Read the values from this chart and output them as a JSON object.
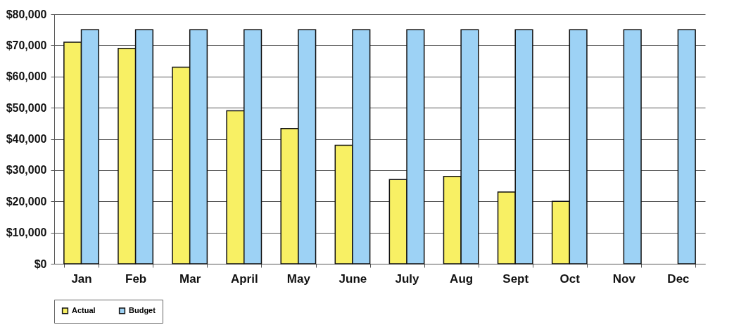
{
  "chart_data": {
    "type": "bar",
    "categories": [
      "Jan",
      "Feb",
      "Mar",
      "April",
      "May",
      "June",
      "July",
      "Aug",
      "Sept",
      "Oct",
      "Nov",
      "Dec"
    ],
    "series": [
      {
        "name": "Actual",
        "color": "#f8f064",
        "values": [
          71000,
          69000,
          63000,
          49000,
          43300,
          38000,
          27000,
          28000,
          23000,
          20000,
          null,
          null
        ]
      },
      {
        "name": "Budget",
        "color": "#9dd2f5",
        "values": [
          75000,
          75000,
          75000,
          75000,
          75000,
          75000,
          75000,
          75000,
          75000,
          75000,
          75000,
          75000
        ]
      }
    ],
    "ylim": [
      0,
      80000
    ],
    "yticks": [
      {
        "value": 0,
        "label": "$0"
      },
      {
        "value": 10000,
        "label": "$10,000"
      },
      {
        "value": 20000,
        "label": "$20,000"
      },
      {
        "value": 30000,
        "label": "$30,000"
      },
      {
        "value": 40000,
        "label": "$40,000"
      },
      {
        "value": 50000,
        "label": "$50,000"
      },
      {
        "value": 60000,
        "label": "$60,000"
      },
      {
        "value": 70000,
        "label": "$70,000"
      },
      {
        "value": 80000,
        "label": "$80,000"
      }
    ],
    "grid": "y",
    "legend": "bottom"
  }
}
